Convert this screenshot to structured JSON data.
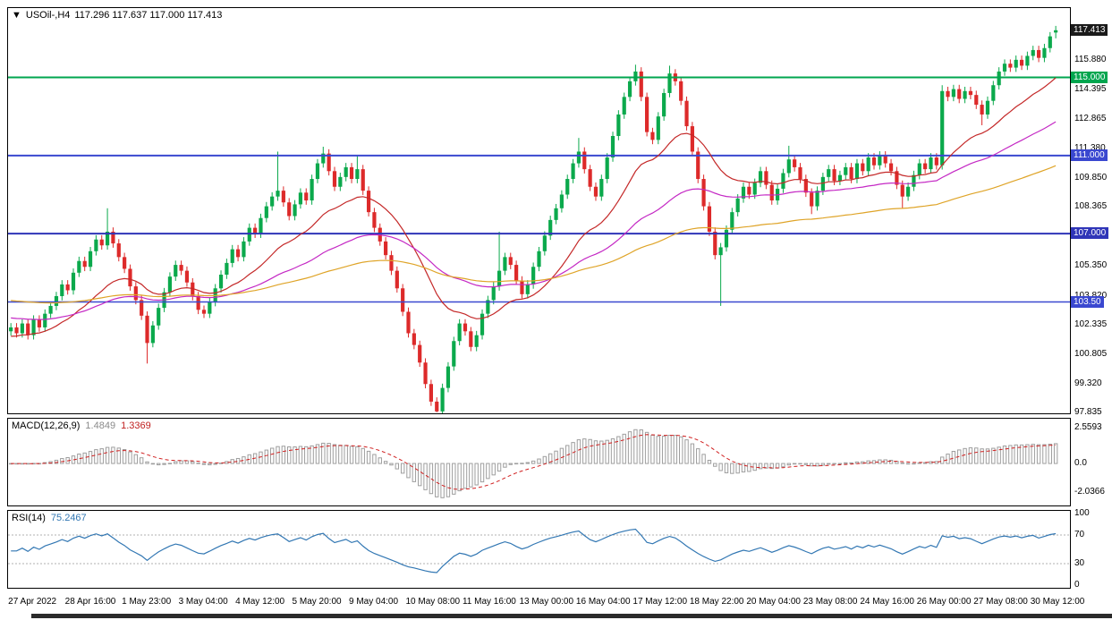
{
  "title": {
    "arrow": "▼",
    "symbol": "USOil-,H4",
    "ohlc": "117.296 117.637 117.000 117.413"
  },
  "macd_label": {
    "name": "MACD(12,26,9)",
    "main_value": "1.4849",
    "signal_value": "1.3369"
  },
  "rsi_label": {
    "name": "RSI(14)",
    "value": "75.2467"
  },
  "chart_data": {
    "type": "candlestick",
    "symbol": "USOil-",
    "timeframe": "H4",
    "ohlc_readout": {
      "open": 117.296,
      "high": 117.637,
      "low": 117.0,
      "close": 117.413
    },
    "x_labels": [
      "27 Apr 2022",
      "28 Apr 16:00",
      "1 May 23:00",
      "3 May 04:00",
      "4 May 12:00",
      "5 May 20:00",
      "9 May 04:00",
      "10 May 08:00",
      "11 May 16:00",
      "13 May 00:00",
      "16 May 04:00",
      "17 May 12:00",
      "18 May 22:00",
      "20 May 04:00",
      "23 May 08:00",
      "24 May 16:00",
      "26 May 00:00",
      "27 May 08:00",
      "30 May 12:00"
    ],
    "x_label_step": 10,
    "price_axis": {
      "view_max": 118.55,
      "view_min": 97.8,
      "ticks": [
        {
          "v": 115.88,
          "label": "115.880"
        },
        {
          "v": 114.395,
          "label": "114.395"
        },
        {
          "v": 112.865,
          "label": "112.865"
        },
        {
          "v": 111.38,
          "label": "111.380"
        },
        {
          "v": 109.85,
          "label": "109.850"
        },
        {
          "v": 108.365,
          "label": "108.365"
        },
        {
          "v": 105.35,
          "label": "105.350"
        },
        {
          "v": 103.82,
          "label": "103.820"
        },
        {
          "v": 102.335,
          "label": "102.335"
        },
        {
          "v": 100.805,
          "label": "100.805"
        },
        {
          "v": 99.32,
          "label": "99.320"
        },
        {
          "v": 97.835,
          "label": "97.835"
        }
      ]
    },
    "price_badges": [
      {
        "v": 117.413,
        "label": "117.413",
        "bg": "#1a1a1a"
      },
      {
        "v": 115.0,
        "label": "115.000",
        "bg": "#00a64f"
      },
      {
        "v": 111.0,
        "label": "111.000",
        "bg": "#3a48d0"
      },
      {
        "v": 107.0,
        "label": "107.000",
        "bg": "#2f35b8"
      },
      {
        "v": 103.5,
        "label": "103.50",
        "bg": "#3a48d0"
      }
    ],
    "levels": [
      {
        "v": 115.0,
        "color": "#00a64f",
        "width": 2
      },
      {
        "v": 111.0,
        "color": "#3a48d0",
        "width": 2
      },
      {
        "v": 107.0,
        "color": "#2f35b8",
        "width": 2
      },
      {
        "v": 103.5,
        "color": "#3a48d0",
        "width": 1.5
      }
    ],
    "candle_colors": {
      "bull": "#0ba94c",
      "bear": "#dd2a2a"
    },
    "closes": [
      102.2,
      101.9,
      102.4,
      101.8,
      102.6,
      102.2,
      102.9,
      103.3,
      103.8,
      104.4,
      104.1,
      105.0,
      105.6,
      105.3,
      106.1,
      106.7,
      106.4,
      107.1,
      106.5,
      105.8,
      105.2,
      104.3,
      103.6,
      102.8,
      101.4,
      102.3,
      103.2,
      104.0,
      104.8,
      105.4,
      105.1,
      104.5,
      103.8,
      103.1,
      102.9,
      103.5,
      104.2,
      104.9,
      105.5,
      106.2,
      105.8,
      106.6,
      107.3,
      107.0,
      107.8,
      108.4,
      108.9,
      109.2,
      108.6,
      107.9,
      108.5,
      109.1,
      108.7,
      109.8,
      110.6,
      111.1,
      110.2,
      109.4,
      109.9,
      110.4,
      109.8,
      110.3,
      109.2,
      108.1,
      107.3,
      106.6,
      105.9,
      105.1,
      104.2,
      103.0,
      101.9,
      101.3,
      100.4,
      99.3,
      98.4,
      97.9,
      99.1,
      100.2,
      101.5,
      102.4,
      102.0,
      101.2,
      101.8,
      102.9,
      103.6,
      104.3,
      105.1,
      105.8,
      105.4,
      104.6,
      103.9,
      104.4,
      105.3,
      106.1,
      106.9,
      107.7,
      108.3,
      109.0,
      109.8,
      110.6,
      111.2,
      110.3,
      109.4,
      108.9,
      109.8,
      110.9,
      112.0,
      113.1,
      114.0,
      114.8,
      115.3,
      114.0,
      112.2,
      111.8,
      113.0,
      114.2,
      115.2,
      114.8,
      113.8,
      112.5,
      111.2,
      109.8,
      108.4,
      107.1,
      105.9,
      106.3,
      107.2,
      108.1,
      108.8,
      109.4,
      109.0,
      109.6,
      110.2,
      109.5,
      108.7,
      109.3,
      110.1,
      110.8,
      110.4,
      109.8,
      109.1,
      108.4,
      109.2,
      109.9,
      110.3,
      109.7,
      110.0,
      110.4,
      109.8,
      110.6,
      110.2,
      110.9,
      110.5,
      111.0,
      110.6,
      110.2,
      109.5,
      108.9,
      109.4,
      110.0,
      110.6,
      110.3,
      110.9,
      110.5,
      114.3,
      114.0,
      114.4,
      113.9,
      114.3,
      114.1,
      113.6,
      113.1,
      113.8,
      114.6,
      115.3,
      115.7,
      115.5,
      115.9,
      115.6,
      116.1,
      116.4,
      116.0,
      116.5,
      117.1,
      117.413
    ],
    "high_overrides": {
      "17": 108.3,
      "47": 111.2,
      "55": 111.45,
      "61": 111.0,
      "86": 107.1,
      "100": 111.9,
      "110": 115.65,
      "116": 115.6,
      "137": 111.5,
      "164": 114.6
    },
    "low_overrides": {
      "24": 100.35,
      "75": 97.85,
      "125": 103.3,
      "141": 108.0,
      "157": 108.3,
      "171": 112.55
    },
    "last_candle_ohlc": [
      117.296,
      117.637,
      117.0,
      117.413
    ],
    "moving_averages": [
      {
        "period": 21,
        "color": "#c42828",
        "seed": 101.7
      },
      {
        "period": 55,
        "color": "#c428c4",
        "seed": 102.7
      },
      {
        "period": 120,
        "color": "#dfa428",
        "seed": 103.6
      }
    ],
    "macd": {
      "fast": 12,
      "slow": 26,
      "signal": 9,
      "view_max": 3.2,
      "view_min": -3.0,
      "ticks": [
        {
          "v": 2.5593,
          "label": "2.5593"
        },
        {
          "v": 0,
          "label": "0.0"
        },
        {
          "v": -2.0366,
          "label": "-2.0366"
        }
      ],
      "bar_color": "#9e9e9e",
      "signal_color": "#d02020"
    },
    "rsi": {
      "period": 14,
      "view_max": 100,
      "view_min": 0,
      "ticks": [
        {
          "v": 100,
          "label": "100"
        },
        {
          "v": 70,
          "label": "70"
        },
        {
          "v": 30,
          "label": "30"
        },
        {
          "v": 0,
          "label": "0"
        }
      ],
      "levels": [
        70,
        30
      ],
      "line_color": "#3277b3",
      "level_color": "#b0b0b0"
    }
  }
}
